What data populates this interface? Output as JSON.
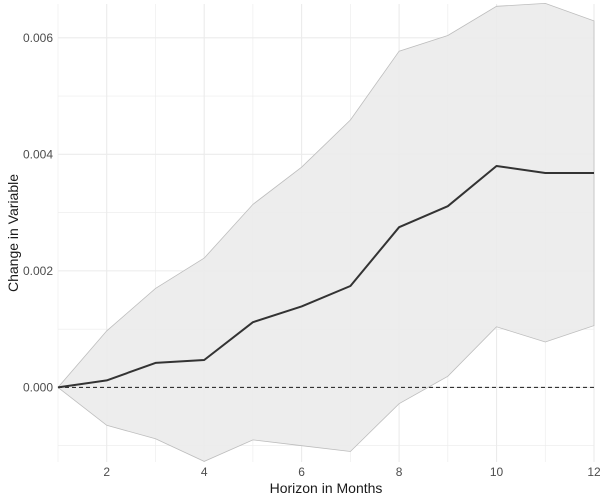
{
  "chart_data": {
    "type": "line",
    "title": "",
    "xlabel": "Horizon in Months",
    "ylabel": "Change in Variable",
    "xlim": [
      1,
      12
    ],
    "ylim": [
      -0.00128,
      0.00658
    ],
    "x_ticks": [
      2,
      4,
      6,
      8,
      10,
      12
    ],
    "y_ticks": [
      0.0,
      0.002,
      0.004,
      0.006
    ],
    "x_tick_labels": [
      "2",
      "4",
      "6",
      "8",
      "10",
      "12"
    ],
    "y_tick_labels": [
      "0.000",
      "0.002",
      "0.004",
      "0.006"
    ],
    "grid": true,
    "background": "#ffffff",
    "grid_color": "#ebebeb",
    "band_color": "#ebebeb",
    "line_color": "#333333",
    "reference_line": {
      "y": 0,
      "style": "dashed"
    },
    "x": [
      1,
      2,
      3,
      4,
      5,
      6,
      7,
      8,
      9,
      10,
      11,
      12
    ],
    "series": [
      {
        "values": [
          0.0,
          0.00012,
          0.00042,
          0.00047,
          0.00112,
          0.00139,
          0.00174,
          0.00275,
          0.00311,
          0.0038,
          0.00368,
          0.00368
        ]
      }
    ],
    "band": {
      "lower": [
        0.0,
        -0.00065,
        -0.00088,
        -0.00127,
        -0.0009,
        -0.001,
        -0.0011,
        -0.00028,
        0.00019,
        0.00104,
        0.00078,
        0.00106
      ],
      "upper": [
        0.0,
        0.00097,
        0.0017,
        0.00222,
        0.00314,
        0.00378,
        0.00459,
        0.00577,
        0.00604,
        0.00654,
        0.00659,
        0.00629
      ]
    }
  }
}
